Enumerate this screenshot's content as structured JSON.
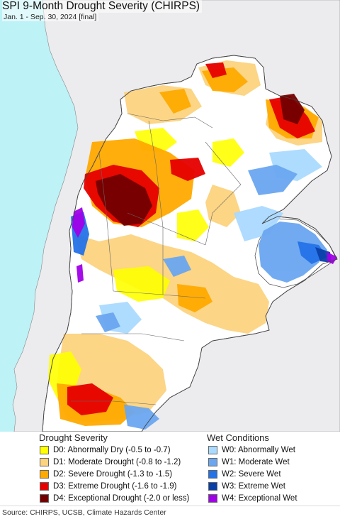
{
  "title": "SPI 9-Month Drought Severity (CHIRPS)",
  "subtitle": "Jan. 1 - Sep. 30, 2024 [final]",
  "colors": {
    "ocean": "#bdf2f7",
    "land_outside": "#ecebee",
    "normal": "#ffffff",
    "border": "#666666"
  },
  "legend": {
    "drought_heading": "Drought Severity",
    "wet_heading": "Wet Conditions",
    "drought_items": [
      {
        "code": "D0",
        "label": "D0: Abnormally Dry (-0.5 to -0.7)",
        "color": "#ffff00"
      },
      {
        "code": "D1",
        "label": "D1: Moderate Drought (-0.8 to -1.2)",
        "color": "#fcd37f"
      },
      {
        "code": "D2",
        "label": "D2: Severe Drought (-1.3 to -1.5)",
        "color": "#ffaa00"
      },
      {
        "code": "D3",
        "label": "D3: Extreme Drought (-1.6 to -1.9)",
        "color": "#e60000"
      },
      {
        "code": "D4",
        "label": "D4: Exceptional Drought (-2.0 or less)",
        "color": "#730000"
      }
    ],
    "wet_items": [
      {
        "code": "W0",
        "label": "W0: Abnormally Wet",
        "color": "#aadaff"
      },
      {
        "code": "W1",
        "label": "W1: Moderate Wet",
        "color": "#6aa6f0"
      },
      {
        "code": "W2",
        "label": "W2: Severe Wet",
        "color": "#2472e8"
      },
      {
        "code": "W3",
        "label": "W3: Extreme Wet",
        "color": "#0a3fa8"
      },
      {
        "code": "W4",
        "label": "W4: Exceptional Wet",
        "color": "#a000e8"
      }
    ]
  },
  "source": "Source: CHIRPS, UCSB, Climate Hazards Center"
}
